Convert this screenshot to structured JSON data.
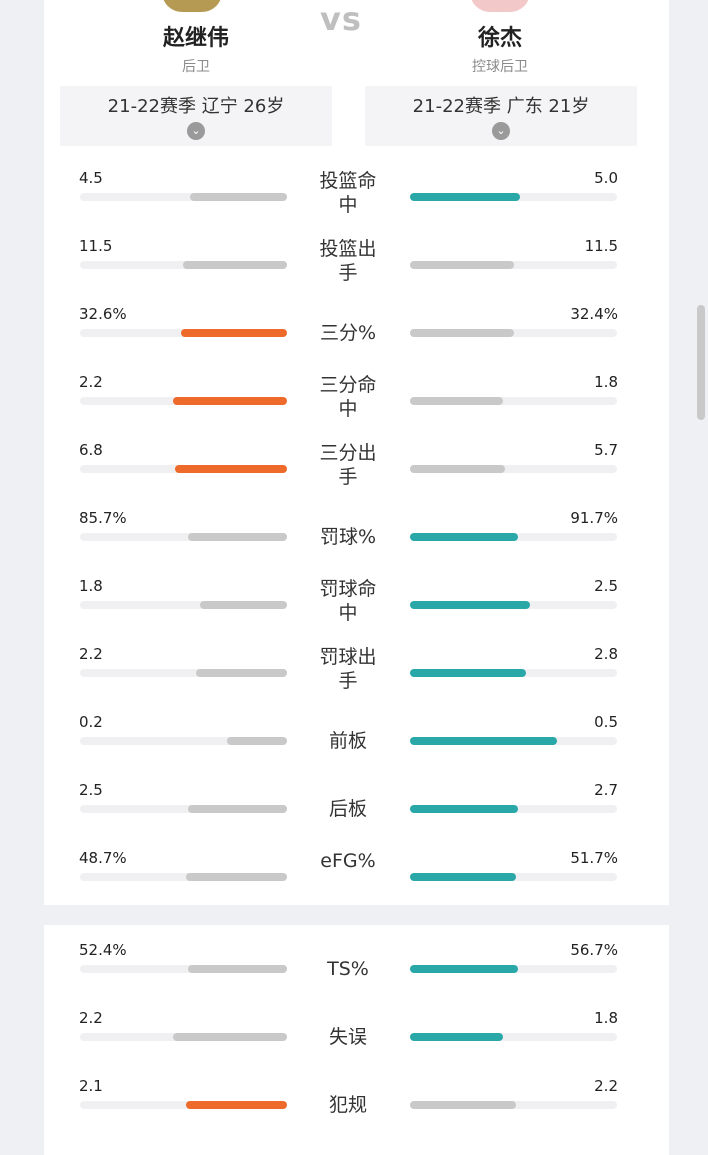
{
  "vs": "vs",
  "players": {
    "left": {
      "name": "赵继伟",
      "position": "后卫",
      "season": "21-22赛季 辽宁 26岁"
    },
    "right": {
      "name": "徐杰",
      "position": "控球后卫",
      "season": "21-22赛季 广东 21岁"
    }
  },
  "colors": {
    "gray": "#c9c9c9",
    "orange": "#ee6a2a",
    "teal": "#2aa8a8"
  },
  "stats": [
    {
      "label": "投篮命中",
      "left": "4.5",
      "right": "5.0",
      "left_level": 0.47,
      "right_level": 0.53,
      "left_color": "gray",
      "right_color": "teal"
    },
    {
      "label": "投篮出手",
      "left": "11.5",
      "right": "11.5",
      "left_level": 0.5,
      "right_level": 0.5,
      "left_color": "gray",
      "right_color": "gray"
    },
    {
      "label": "三分%",
      "left": "32.6%",
      "right": "32.4%",
      "left_level": 0.51,
      "right_level": 0.5,
      "left_color": "orange",
      "right_color": "gray"
    },
    {
      "label": "三分命中",
      "left": "2.2",
      "right": "1.8",
      "left_level": 0.55,
      "right_level": 0.45,
      "left_color": "orange",
      "right_color": "gray"
    },
    {
      "label": "三分出手",
      "left": "6.8",
      "right": "5.7",
      "left_level": 0.54,
      "right_level": 0.46,
      "left_color": "orange",
      "right_color": "gray"
    },
    {
      "label": "罚球%",
      "left": "85.7%",
      "right": "91.7%",
      "left_level": 0.48,
      "right_level": 0.52,
      "left_color": "gray",
      "right_color": "teal"
    },
    {
      "label": "罚球命中",
      "left": "1.8",
      "right": "2.5",
      "left_level": 0.42,
      "right_level": 0.58,
      "left_color": "gray",
      "right_color": "teal"
    },
    {
      "label": "罚球出手",
      "left": "2.2",
      "right": "2.8",
      "left_level": 0.44,
      "right_level": 0.56,
      "left_color": "gray",
      "right_color": "teal"
    },
    {
      "label": "前板",
      "left": "0.2",
      "right": "0.5",
      "left_level": 0.29,
      "right_level": 0.71,
      "left_color": "gray",
      "right_color": "teal"
    },
    {
      "label": "后板",
      "left": "2.5",
      "right": "2.7",
      "left_level": 0.48,
      "right_level": 0.52,
      "left_color": "gray",
      "right_color": "teal"
    },
    {
      "label": "eFG%",
      "left": "48.7%",
      "right": "51.7%",
      "left_level": 0.49,
      "right_level": 0.51,
      "left_color": "gray",
      "right_color": "teal"
    },
    {
      "label": "TS%",
      "left": "52.4%",
      "right": "56.7%",
      "left_level": 0.48,
      "right_level": 0.52,
      "left_color": "gray",
      "right_color": "teal"
    },
    {
      "label": "失误",
      "left": "2.2",
      "right": "1.8",
      "left_level": 0.55,
      "right_level": 0.45,
      "left_color": "gray",
      "right_color": "teal"
    },
    {
      "label": "犯规",
      "left": "2.1",
      "right": "2.2",
      "left_level": 0.49,
      "right_level": 0.51,
      "left_color": "orange",
      "right_color": "gray"
    }
  ]
}
